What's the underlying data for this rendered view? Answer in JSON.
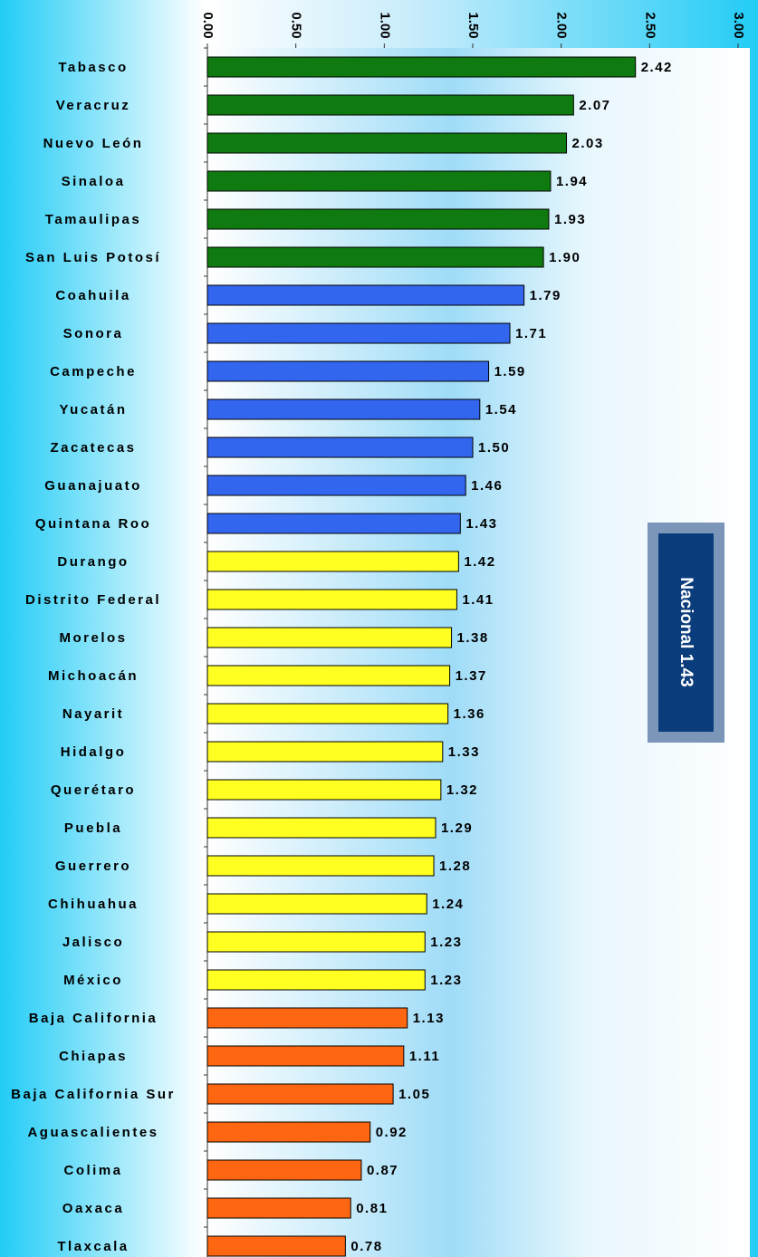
{
  "chart_data": {
    "type": "bar",
    "orientation": "horizontal",
    "categories": [
      "Tabasco",
      "Veracruz",
      "Nuevo León",
      "Sinaloa",
      "Tamaulipas",
      "San Luis Potosí",
      "Coahuila",
      "Sonora",
      "Campeche",
      "Yucatán",
      "Zacatecas",
      "Guanajuato",
      "Quintana Roo",
      "Durango",
      "Distrito Federal",
      "Morelos",
      "Michoacán",
      "Nayarit",
      "Hidalgo",
      "Querétaro",
      "Puebla",
      "Guerrero",
      "Chihuahua",
      "Jalisco",
      "México",
      "Baja California",
      "Chiapas",
      "Baja California Sur",
      "Aguascalientes",
      "Colima",
      "Oaxaca",
      "Tlaxcala"
    ],
    "values": [
      2.42,
      2.07,
      2.03,
      1.94,
      1.93,
      1.9,
      1.79,
      1.71,
      1.59,
      1.54,
      1.5,
      1.46,
      1.43,
      1.42,
      1.41,
      1.38,
      1.37,
      1.36,
      1.33,
      1.32,
      1.29,
      1.28,
      1.24,
      1.23,
      1.23,
      1.13,
      1.11,
      1.05,
      0.92,
      0.87,
      0.81,
      0.78
    ],
    "value_labels": [
      "2.42",
      "2.07",
      "2.03",
      "1.94",
      "1.93",
      "1.90",
      "1.79",
      "1.71",
      "1.59",
      "1.54",
      "1.50",
      "1.46",
      "1.43",
      "1.42",
      "1.41",
      "1.38",
      "1.37",
      "1.36",
      "1.33",
      "1.32",
      "1.29",
      "1.28",
      "1.24",
      "1.23",
      "1.23",
      "1.13",
      "1.11",
      "1.05",
      "0.92",
      "0.87",
      "0.81",
      "0.78"
    ],
    "colors": [
      "#0f7a0f",
      "#0f7a0f",
      "#0f7a0f",
      "#0f7a0f",
      "#0f7a0f",
      "#0f7a0f",
      "#3366ee",
      "#3366ee",
      "#3366ee",
      "#3366ee",
      "#3366ee",
      "#3366ee",
      "#3366ee",
      "#ffff22",
      "#ffff22",
      "#ffff22",
      "#ffff22",
      "#ffff22",
      "#ffff22",
      "#ffff22",
      "#ffff22",
      "#ffff22",
      "#ffff22",
      "#ffff22",
      "#ffff22",
      "#ff6611",
      "#ff6611",
      "#ff6611",
      "#ff6611",
      "#ff6611",
      "#ff6611",
      "#ff6611"
    ],
    "xlim": [
      0,
      3
    ],
    "xticks": [
      {
        "value": 0,
        "label": "0.00"
      },
      {
        "value": 0.5,
        "label": "0.50"
      },
      {
        "value": 1,
        "label": "1.00"
      },
      {
        "value": 1.5,
        "label": "1.50"
      },
      {
        "value": 2,
        "label": "2.00"
      },
      {
        "value": 2.5,
        "label": "2.50"
      },
      {
        "value": 3,
        "label": "3.00"
      }
    ],
    "annotation": "Nacional 1.43"
  }
}
